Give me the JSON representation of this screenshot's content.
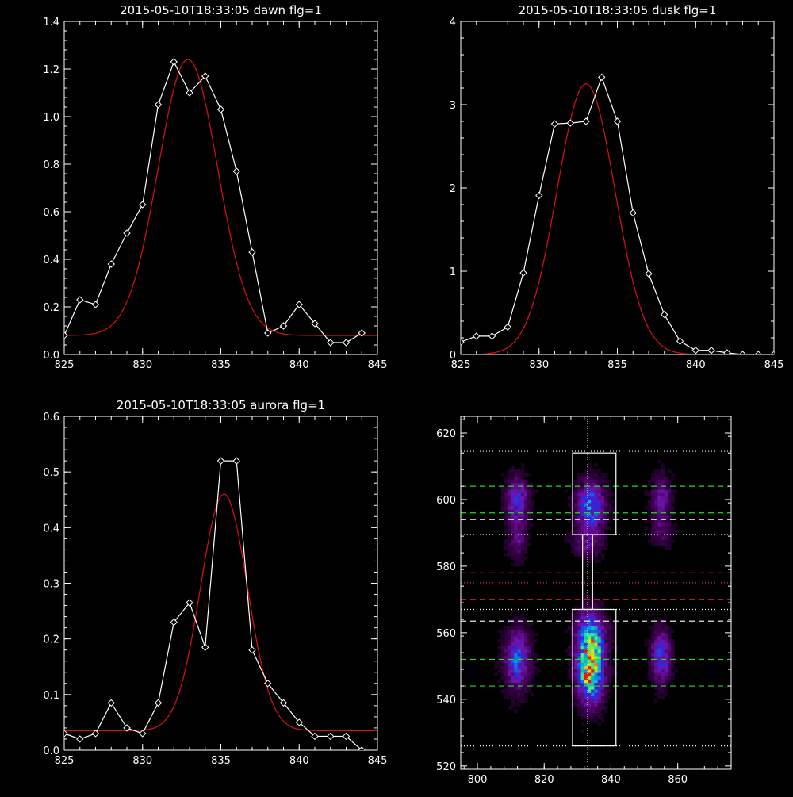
{
  "chart_data": [
    {
      "type": "line",
      "title": "2015-05-10T18:33:05 dawn flg=1",
      "xlim": [
        825,
        845
      ],
      "ylim": [
        0,
        1.4
      ],
      "xticks": [
        "825",
        "830",
        "835",
        "840",
        "845"
      ],
      "yticks": [
        "0.0",
        "0.2",
        "0.4",
        "0.6",
        "0.8",
        "1.0",
        "1.2",
        "1.4"
      ],
      "series": [
        {
          "role": "observed",
          "color": "#ffffff",
          "marker": "diamond",
          "x": [
            825,
            826,
            827,
            828,
            829,
            830,
            831,
            832,
            833,
            834,
            835,
            836,
            837,
            838,
            839,
            840,
            841,
            842,
            843,
            844
          ],
          "y": [
            0.08,
            0.23,
            0.21,
            0.38,
            0.51,
            0.63,
            1.05,
            1.23,
            1.1,
            1.17,
            1.03,
            0.77,
            0.43,
            0.09,
            0.12,
            0.21,
            0.13,
            0.05,
            0.05,
            0.09
          ]
        },
        {
          "role": "fit",
          "color": "#e01010",
          "fit": {
            "baseline": 0.08,
            "amplitude": 1.16,
            "center": 832.9,
            "sigma": 1.9
          }
        }
      ]
    },
    {
      "type": "line",
      "title": "2015-05-10T18:33:05 dusk flg=1",
      "xlim": [
        825,
        845
      ],
      "ylim": [
        0,
        4
      ],
      "xticks": [
        "825",
        "830",
        "835",
        "840",
        "845"
      ],
      "yticks": [
        "0",
        "1",
        "2",
        "3",
        "4"
      ],
      "series": [
        {
          "role": "observed",
          "color": "#ffffff",
          "marker": "diamond",
          "x": [
            825,
            826,
            827,
            828,
            829,
            830,
            831,
            832,
            833,
            834,
            835,
            836,
            837,
            838,
            839,
            840,
            841,
            842,
            843,
            844,
            845
          ],
          "y": [
            0.15,
            0.22,
            0.22,
            0.33,
            0.98,
            1.91,
            2.77,
            2.78,
            2.8,
            3.33,
            2.8,
            1.7,
            0.97,
            0.48,
            0.16,
            0.05,
            0.05,
            0.02,
            0.0,
            0.0,
            0.0
          ]
        },
        {
          "role": "fit",
          "color": "#e01010",
          "fit": {
            "baseline": 0.0,
            "amplitude": 3.25,
            "center": 833.0,
            "sigma": 1.85
          }
        }
      ]
    },
    {
      "type": "line",
      "title": "2015-05-10T18:33:05 aurora flg=1",
      "xlim": [
        825,
        845
      ],
      "ylim": [
        0,
        0.6
      ],
      "xticks": [
        "825",
        "830",
        "835",
        "840",
        "845"
      ],
      "yticks": [
        "0.0",
        "0.1",
        "0.2",
        "0.3",
        "0.4",
        "0.5",
        "0.6"
      ],
      "series": [
        {
          "role": "observed",
          "color": "#ffffff",
          "marker": "diamond",
          "x": [
            825,
            826,
            827,
            828,
            829,
            830,
            831,
            832,
            833,
            834,
            835,
            836,
            837,
            838,
            839,
            840,
            841,
            842,
            843,
            844
          ],
          "y": [
            0.03,
            0.02,
            0.03,
            0.085,
            0.04,
            0.03,
            0.085,
            0.23,
            0.265,
            0.185,
            0.52,
            0.52,
            0.18,
            0.12,
            0.085,
            0.05,
            0.025,
            0.025,
            0.025,
            0.0
          ]
        },
        {
          "role": "fit",
          "color": "#e01010",
          "fit": {
            "baseline": 0.035,
            "amplitude": 0.425,
            "center": 835.2,
            "sigma": 1.5
          }
        }
      ]
    },
    {
      "type": "heatmap",
      "title": "",
      "xlim": [
        795,
        876
      ],
      "ylim": [
        519,
        625
      ],
      "xticks": [
        "800",
        "820",
        "840",
        "860"
      ],
      "yticks": [
        "520",
        "540",
        "560",
        "580",
        "600",
        "620"
      ],
      "blobs": [
        {
          "x": 834,
          "y": 549,
          "w": 1.0,
          "sx": 2.6,
          "sy": 6.5
        },
        {
          "x": 834,
          "y": 560,
          "w": 0.45,
          "sx": 3.0,
          "sy": 5.0
        },
        {
          "x": 834,
          "y": 598,
          "w": 0.55,
          "sx": 2.8,
          "sy": 5.0
        },
        {
          "x": 833,
          "y": 587,
          "w": 0.22,
          "sx": 3.0,
          "sy": 3.0
        },
        {
          "x": 812,
          "y": 552,
          "w": 0.5,
          "sx": 2.5,
          "sy": 6.0
        },
        {
          "x": 812,
          "y": 600,
          "w": 0.42,
          "sx": 2.3,
          "sy": 4.5
        },
        {
          "x": 812,
          "y": 588,
          "w": 0.22,
          "sx": 2.0,
          "sy": 4.0
        },
        {
          "x": 855,
          "y": 553,
          "w": 0.42,
          "sx": 2.0,
          "sy": 5.5
        },
        {
          "x": 855,
          "y": 600,
          "w": 0.28,
          "sx": 2.0,
          "sy": 5.0
        },
        {
          "x": 855,
          "y": 590,
          "w": 0.15,
          "sx": 2.0,
          "sy": 3.0
        }
      ],
      "vline": {
        "x": 833,
        "color": "#ffffff",
        "style": "dotted"
      },
      "hlines": [
        {
          "y": 614.5,
          "color": "#ffffff",
          "style": "dotted"
        },
        {
          "y": 604,
          "color": "#22dd22",
          "style": "dashed"
        },
        {
          "y": 596,
          "color": "#22dd22",
          "style": "dashed"
        },
        {
          "y": 594,
          "color": "#ffffff",
          "style": "dashed"
        },
        {
          "y": 589.5,
          "color": "#ffffff",
          "style": "dotted"
        },
        {
          "y": 578,
          "color": "#ff2030",
          "style": "dashed"
        },
        {
          "y": 575,
          "color": "#ff2030",
          "style": "dotted"
        },
        {
          "y": 570,
          "color": "#ff2030",
          "style": "dashed"
        },
        {
          "y": 567,
          "color": "#ffffff",
          "style": "dotted"
        },
        {
          "y": 563.5,
          "color": "#ffffff",
          "style": "dashed"
        },
        {
          "y": 552,
          "color": "#22dd22",
          "style": "dashed"
        },
        {
          "y": 544,
          "color": "#22dd22",
          "style": "dashed"
        },
        {
          "y": 526,
          "color": "#ffffff",
          "style": "dotted"
        }
      ],
      "regions": [
        {
          "x0": 828.5,
          "x1": 841.5,
          "y0": 526,
          "y1": 567
        },
        {
          "x0": 828.5,
          "x1": 841.5,
          "y0": 589.5,
          "y1": 614
        },
        {
          "x0": 831.5,
          "x1": 834.5,
          "y0": 567,
          "y1": 589.5
        }
      ]
    }
  ]
}
